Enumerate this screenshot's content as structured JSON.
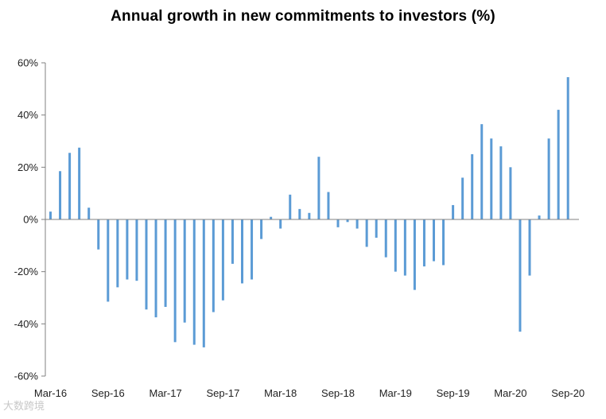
{
  "chart_data": {
    "type": "bar",
    "title": "Annual growth in new commitments to investors (%)",
    "xlabel": "",
    "ylabel": "",
    "ylim": [
      -60,
      60
    ],
    "yticks": [
      60,
      40,
      20,
      0,
      -20,
      -40,
      -60
    ],
    "ytick_suffix": "%",
    "grid": false,
    "bar_color": "#5b9bd5",
    "axis_color": "#808080",
    "xtick_labels": [
      {
        "index": 0,
        "label": "Mar-16"
      },
      {
        "index": 6,
        "label": "Sep-16"
      },
      {
        "index": 12,
        "label": "Mar-17"
      },
      {
        "index": 18,
        "label": "Sep-17"
      },
      {
        "index": 24,
        "label": "Mar-18"
      },
      {
        "index": 30,
        "label": "Sep-18"
      },
      {
        "index": 36,
        "label": "Mar-19"
      },
      {
        "index": 42,
        "label": "Sep-19"
      },
      {
        "index": 48,
        "label": "Mar-20"
      },
      {
        "index": 54,
        "label": "Sep-20"
      }
    ],
    "categories": [
      "Mar-16",
      "Apr-16",
      "May-16",
      "Jun-16",
      "Jul-16",
      "Aug-16",
      "Sep-16",
      "Oct-16",
      "Nov-16",
      "Dec-16",
      "Jan-17",
      "Feb-17",
      "Mar-17",
      "Apr-17",
      "May-17",
      "Jun-17",
      "Jul-17",
      "Aug-17",
      "Sep-17",
      "Oct-17",
      "Nov-17",
      "Dec-17",
      "Jan-18",
      "Feb-18",
      "Mar-18",
      "Apr-18",
      "May-18",
      "Jun-18",
      "Jul-18",
      "Aug-18",
      "Sep-18",
      "Oct-18",
      "Nov-18",
      "Dec-18",
      "Jan-19",
      "Feb-19",
      "Mar-19",
      "Apr-19",
      "May-19",
      "Jun-19",
      "Jul-19",
      "Aug-19",
      "Sep-19",
      "Oct-19",
      "Nov-19",
      "Dec-19",
      "Jan-20",
      "Feb-20",
      "Mar-20",
      "Apr-20",
      "May-20",
      "Jun-20",
      "Jul-20",
      "Aug-20",
      "Sep-20"
    ],
    "values": [
      3,
      18.5,
      25.5,
      27.5,
      4.5,
      -11.5,
      -31.5,
      -26,
      -23,
      -23.5,
      -34.5,
      -37.5,
      -33.5,
      -47,
      -39.5,
      -48,
      -49,
      -35.5,
      -31,
      -17,
      -24.5,
      -23,
      -7.5,
      1,
      -3.5,
      9.5,
      4,
      2.5,
      24,
      10.5,
      -3,
      -1,
      -3.5,
      -10.5,
      -7,
      -14.5,
      -20,
      -21.5,
      -27,
      -18,
      -16,
      -17.5,
      5.5,
      16,
      25,
      36.5,
      31,
      28,
      20,
      -43,
      -21.5,
      1.5,
      31,
      42,
      54.5
    ]
  },
  "watermark_text": "大数跨境"
}
